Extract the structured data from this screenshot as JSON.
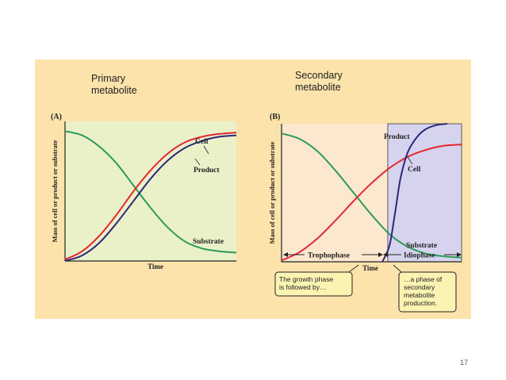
{
  "headings": {
    "primary": "Primary\nmetabolite",
    "secondary": "Secondary\nmetabolite"
  },
  "page_number": "17",
  "colors": {
    "slide_background": "#fbe3ab",
    "panel_a_background": "#eaf1c9",
    "panel_b_trophophase": "#fbe8cf",
    "panel_b_idiophase": "#d6d3ee",
    "cell": "#e62630",
    "product": "#2a2a7a",
    "substrate": "#2e9a5a",
    "callout_fill": "#fbf3b2"
  },
  "chart_data": [
    {
      "id": "A",
      "type": "line",
      "panel_label": "(A)",
      "title": "",
      "xlabel": "Time",
      "ylabel": "Mass of cell or product or substrate",
      "xlim": [
        0,
        10
      ],
      "ylim": [
        0,
        10
      ],
      "grid": false,
      "legend": "none",
      "series": [
        {
          "name": "Cell",
          "color_key": "cell",
          "x": [
            0,
            1,
            2,
            3,
            4,
            5,
            6,
            7,
            8,
            9,
            10
          ],
          "y": [
            0.1,
            0.7,
            1.8,
            3.3,
            5.0,
            6.5,
            7.7,
            8.5,
            8.9,
            9.1,
            9.2
          ]
        },
        {
          "name": "Product",
          "color_key": "product",
          "x": [
            0,
            1,
            2,
            3,
            4,
            5,
            6,
            7,
            8,
            9,
            10
          ],
          "y": [
            0.0,
            0.4,
            1.3,
            2.7,
            4.3,
            5.9,
            7.2,
            8.1,
            8.6,
            8.9,
            9.0
          ]
        },
        {
          "name": "Substrate",
          "color_key": "substrate",
          "x": [
            0,
            1,
            2,
            3,
            4,
            5,
            6,
            7,
            8,
            9,
            10
          ],
          "y": [
            9.3,
            9.0,
            8.2,
            7.0,
            5.4,
            3.8,
            2.4,
            1.4,
            0.9,
            0.7,
            0.6
          ]
        }
      ],
      "annotations": [
        {
          "text": "Cell",
          "series": "Cell"
        },
        {
          "text": "Product",
          "series": "Product"
        },
        {
          "text": "Substrate",
          "series": "Substrate"
        }
      ]
    },
    {
      "id": "B",
      "type": "line",
      "panel_label": "(B)",
      "title": "",
      "xlabel": "Time",
      "ylabel": "Mass of cell or product or substrate",
      "xlim": [
        0,
        10
      ],
      "ylim": [
        0,
        10
      ],
      "grid": false,
      "legend": "none",
      "phase_boundary_x": 5.9,
      "phases": [
        {
          "name": "Trophophase",
          "label": "Trophophase",
          "x_range": [
            0,
            5.9
          ]
        },
        {
          "name": "Idiophase",
          "label": "Idiophase",
          "x_range": [
            5.9,
            10
          ]
        }
      ],
      "series": [
        {
          "name": "Cell",
          "color_key": "cell",
          "x": [
            0,
            1,
            2,
            3,
            4,
            5,
            6,
            7,
            8,
            9,
            10
          ],
          "y": [
            0.1,
            0.7,
            1.7,
            3.0,
            4.4,
            5.7,
            6.8,
            7.6,
            8.1,
            8.4,
            8.5
          ]
        },
        {
          "name": "Product",
          "color_key": "product",
          "x": [
            5.6,
            6.0,
            6.3,
            6.6,
            7.0,
            7.5,
            8.0,
            8.6,
            9.2
          ],
          "y": [
            0.0,
            1.2,
            3.5,
            6.0,
            7.9,
            9.0,
            9.6,
            9.9,
            10.0
          ]
        },
        {
          "name": "Substrate",
          "color_key": "substrate",
          "x": [
            0,
            1,
            2,
            3,
            4,
            5,
            6,
            7,
            8,
            9,
            10
          ],
          "y": [
            9.3,
            8.9,
            8.0,
            6.6,
            5.0,
            3.4,
            2.0,
            1.1,
            0.6,
            0.4,
            0.3
          ]
        }
      ],
      "annotations": [
        {
          "text": "Product",
          "series": "Product"
        },
        {
          "text": "Cell",
          "series": "Cell"
        },
        {
          "text": "Substrate",
          "series": "Substrate"
        }
      ],
      "callouts": [
        {
          "text": "The growth phase\nis followed by…"
        },
        {
          "text": "…a phase of\nsecondary\nmetabolite\nproduction."
        }
      ]
    }
  ]
}
